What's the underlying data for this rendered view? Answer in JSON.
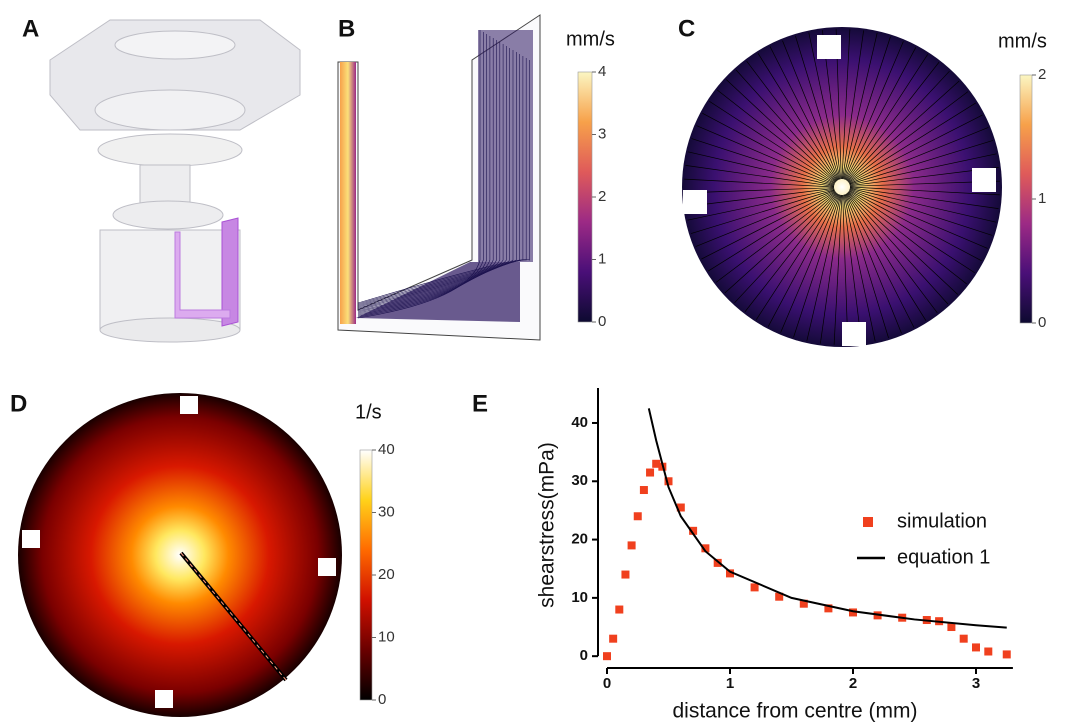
{
  "panel_labels": [
    "A",
    "B",
    "C",
    "D",
    "E"
  ],
  "chart_data": [
    {
      "type": "colorbar",
      "title": "mm/s",
      "ylim": [
        0,
        4
      ],
      "yticks": [
        0,
        1,
        2,
        3,
        4
      ],
      "colors": [
        "#0d0a30",
        "#4a0f78",
        "#9c2a85",
        "#df5a5a",
        "#f7a14a",
        "#fbf6c2"
      ]
    },
    {
      "type": "colorbar",
      "title": "mm/s",
      "ylim": [
        0,
        2
      ],
      "yticks": [
        0,
        1,
        2
      ],
      "colors": [
        "#0d0a30",
        "#4a0f78",
        "#9c2a85",
        "#df5a5a",
        "#f7a14a",
        "#fbf6c2"
      ]
    },
    {
      "type": "colorbar",
      "title": "1/s",
      "ylim": [
        0,
        40
      ],
      "yticks": [
        0,
        10,
        20,
        30,
        40
      ],
      "colors": [
        "#000000",
        "#6a0000",
        "#d01000",
        "#ff6a00",
        "#ffd21a",
        "#ffffff"
      ]
    },
    {
      "type": "line",
      "xlabel": "distance from centre (mm)",
      "ylabel": "shearstress(mPa)",
      "xlim": [
        -0.05,
        3.3
      ],
      "ylim": [
        -1,
        46
      ],
      "xticks": [
        0,
        1,
        2,
        3
      ],
      "yticks": [
        0,
        10,
        20,
        30,
        40
      ],
      "legend": "right",
      "series": [
        {
          "name": "simulation",
          "color": "#f0401e",
          "style": "markers",
          "x": [
            0,
            0.05,
            0.1,
            0.15,
            0.2,
            0.25,
            0.3,
            0.35,
            0.4,
            0.45,
            0.5,
            0.6,
            0.7,
            0.8,
            0.9,
            1.0,
            1.2,
            1.4,
            1.6,
            1.8,
            2.0,
            2.2,
            2.4,
            2.6,
            2.7,
            2.8,
            2.9,
            3.0,
            3.1,
            3.25
          ],
          "values": [
            0,
            3,
            8,
            14,
            19,
            24,
            28.5,
            31.5,
            33,
            32.5,
            30,
            25.5,
            21.5,
            18.5,
            16,
            14.2,
            11.8,
            10.2,
            9,
            8.2,
            7.5,
            7,
            6.6,
            6.2,
            6,
            5,
            3,
            1.5,
            0.8,
            0.3
          ]
        },
        {
          "name": "equation 1",
          "color": "#000000",
          "style": "line",
          "x": [
            0.34,
            0.4,
            0.5,
            0.6,
            0.8,
            1.0,
            1.5,
            2.0,
            2.5,
            3.0,
            3.25
          ],
          "values": [
            42.5,
            37,
            29,
            24,
            18,
            14.5,
            10,
            7.7,
            6.3,
            5.3,
            4.9
          ]
        }
      ]
    }
  ]
}
